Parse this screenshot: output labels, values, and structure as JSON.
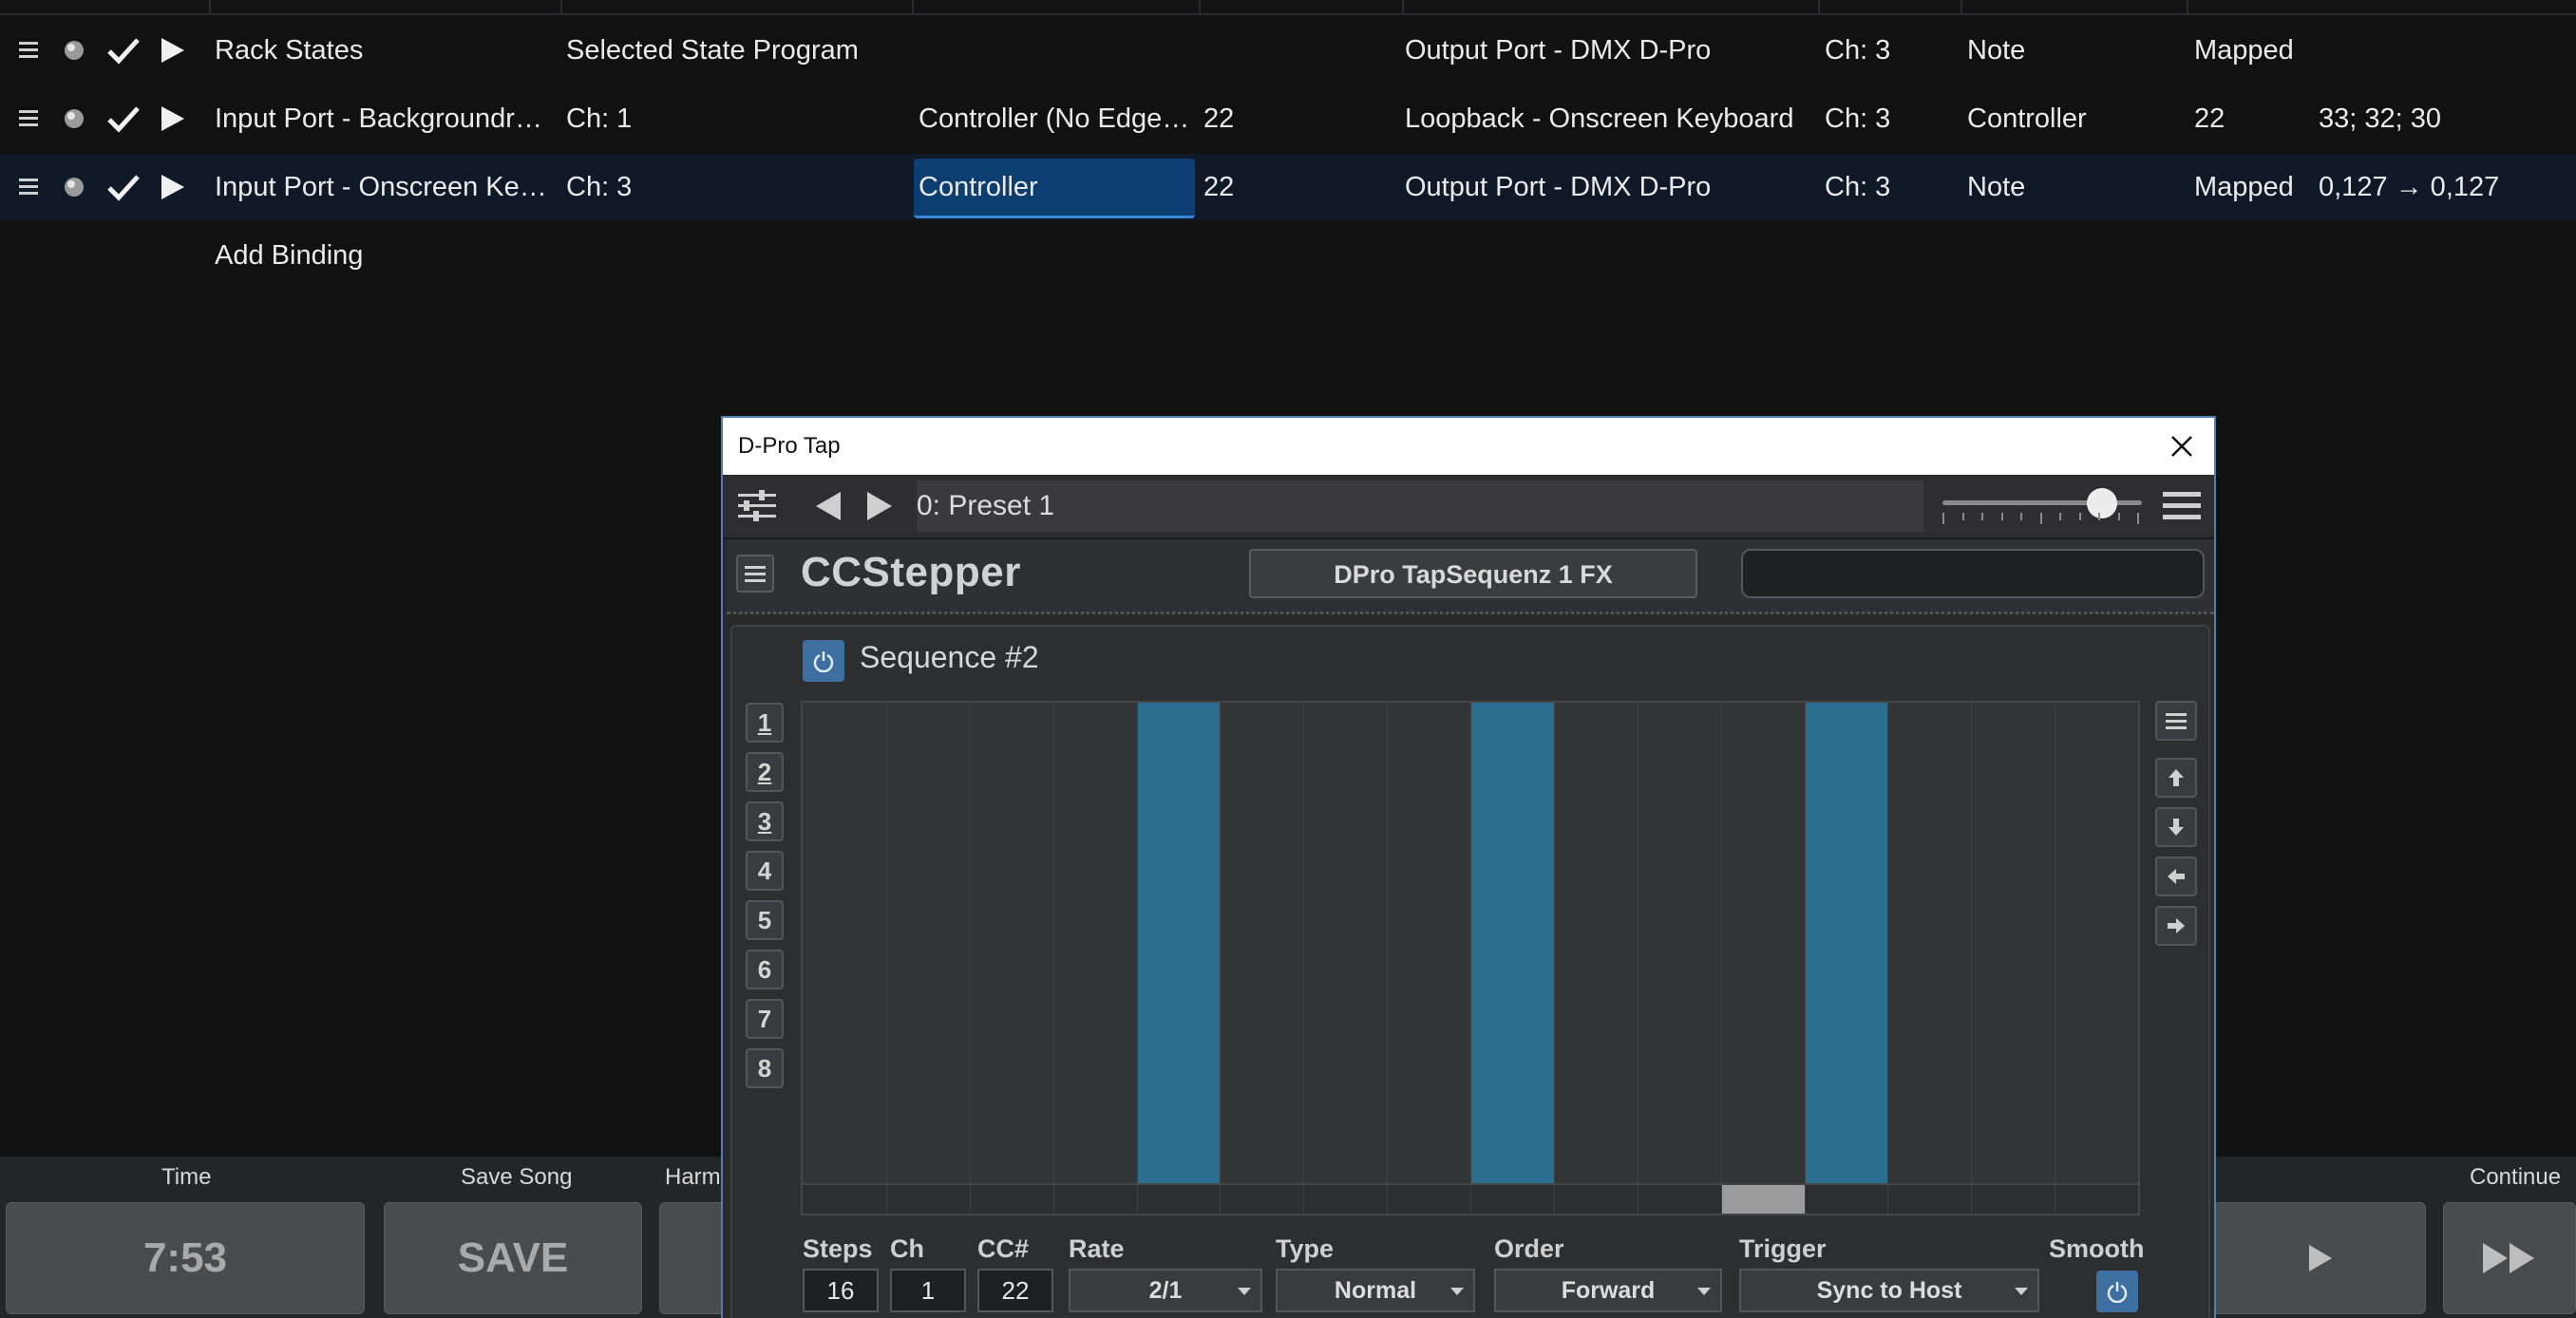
{
  "bindings": {
    "rows": [
      {
        "source": "Rack States",
        "channel": "Selected State Program",
        "event": "",
        "value": "",
        "target": "Output Port - DMX D-Pro",
        "target_channel": "Ch: 3",
        "target_event": "Note",
        "mapping": "Mapped",
        "range": ""
      },
      {
        "source": "Input Port - Backgroundra...",
        "channel": "Ch: 1",
        "event": "Controller (No Edge ...",
        "value": "22",
        "target": "Loopback - Onscreen Keyboard",
        "target_channel": "Ch: 3",
        "target_event": "Controller",
        "mapping": "22",
        "range": "33; 32; 30"
      },
      {
        "source": "Input Port - Onscreen Key...",
        "channel": "Ch: 3",
        "event": "Controller",
        "value": "22",
        "target": "Output Port - DMX D-Pro",
        "target_channel": "Ch: 3",
        "target_event": "Note",
        "mapping": "Mapped",
        "range": "0,127 → 0,127"
      }
    ],
    "add_label": "Add Binding"
  },
  "bottom": {
    "time_label": "Time",
    "time_value": "7:53",
    "save_label": "Save Song",
    "save_btn": "SAVE",
    "harm_label": "Harm",
    "continue_label": "Continue"
  },
  "plugin": {
    "title": "D-Pro Tap",
    "preset": "0: Preset 1",
    "slider_level": 0.8,
    "logo": "CCStepper",
    "instance_name": "DPro TapSequenz 1 FX",
    "sequence_title": "Sequence #2",
    "sequences": [
      "1",
      "2",
      "3",
      "4",
      "5",
      "6",
      "7",
      "8"
    ],
    "steps": [
      0,
      0,
      0,
      0,
      1,
      0,
      0,
      0,
      1,
      0,
      0,
      0,
      1,
      0,
      0,
      0
    ],
    "current_step": 11,
    "controls": {
      "steps_label": "Steps",
      "steps_value": "16",
      "ch_label": "Ch",
      "ch_value": "1",
      "cc_label": "CC#",
      "cc_value": "22",
      "rate_label": "Rate",
      "rate_value": "2/1",
      "type_label": "Type",
      "type_value": "Normal",
      "order_label": "Order",
      "order_value": "Forward",
      "trigger_label": "Trigger",
      "trigger_value": "Sync to Host",
      "smooth_label": "Smooth"
    }
  },
  "colors": {
    "step_on": "#2c6e8f",
    "accent": "#3d6fa0",
    "selected_row": "#0c3e72"
  }
}
